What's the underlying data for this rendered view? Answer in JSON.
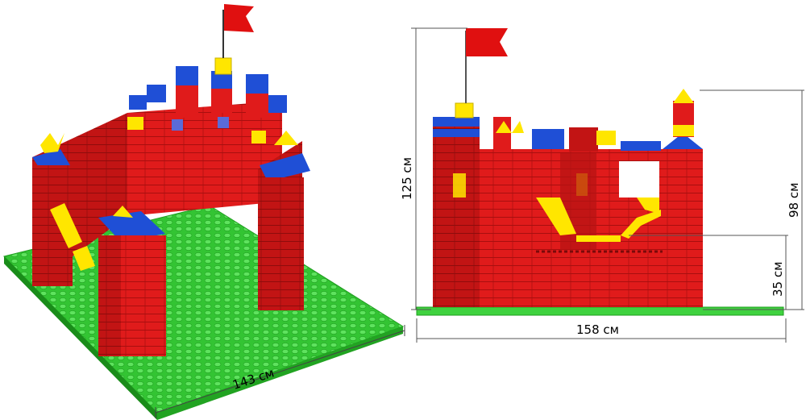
{
  "dimensions": {
    "left_width": "143 см",
    "height_total": "125 см",
    "width_front": "158 см",
    "height_tower": "98 см",
    "height_window": "35 см"
  },
  "colors": {
    "red": "#e01b1b",
    "red_dark": "#b01212",
    "blue": "#1f4fd6",
    "yellow": "#ffe600",
    "green": "#3fd23f",
    "green_dark": "#1f9e1f",
    "flag": "#e01010"
  }
}
